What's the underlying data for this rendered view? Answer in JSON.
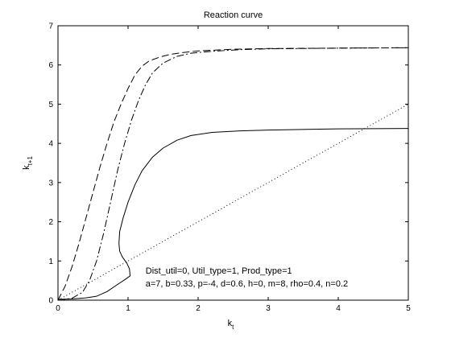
{
  "chart_data": {
    "type": "line",
    "title": "Reaction curve",
    "xlabel": {
      "base": "k",
      "sub": "t"
    },
    "ylabel": {
      "base": "k",
      "sub": "t+1"
    },
    "xlim": [
      0,
      5
    ],
    "ylim": [
      0,
      7
    ],
    "xticks": [
      0,
      1,
      2,
      3,
      4,
      5
    ],
    "yticks": [
      0,
      1,
      2,
      3,
      4,
      5,
      6,
      7
    ],
    "grid": false,
    "annotations": [
      {
        "text": "Dist_util=0, Util_type=1, Prod_type=1",
        "x": 1.25,
        "y": 0.68
      },
      {
        "text": "a=7, b=0.33, p=-4, d=0.6, h=0, m=8, rho=0.4, n=0.2",
        "x": 1.25,
        "y": 0.35
      }
    ],
    "series": [
      {
        "style": "dashed",
        "points": [
          [
            0,
            0
          ],
          [
            0.1,
            0.35
          ],
          [
            0.2,
            0.85
          ],
          [
            0.3,
            1.45
          ],
          [
            0.4,
            2.1
          ],
          [
            0.5,
            2.75
          ],
          [
            0.6,
            3.4
          ],
          [
            0.7,
            4.0
          ],
          [
            0.8,
            4.55
          ],
          [
            0.9,
            5.0
          ],
          [
            1.0,
            5.4
          ],
          [
            1.1,
            5.75
          ],
          [
            1.2,
            5.97
          ],
          [
            1.3,
            6.1
          ],
          [
            1.45,
            6.2
          ],
          [
            1.6,
            6.27
          ],
          [
            1.8,
            6.32
          ],
          [
            2.0,
            6.36
          ],
          [
            2.5,
            6.4
          ],
          [
            3.0,
            6.42
          ],
          [
            4.0,
            6.43
          ],
          [
            5.0,
            6.44
          ]
        ]
      },
      {
        "style": "dashdot",
        "points": [
          [
            0,
            0
          ],
          [
            0.2,
            0.05
          ],
          [
            0.35,
            0.2
          ],
          [
            0.45,
            0.5
          ],
          [
            0.55,
            1.0
          ],
          [
            0.65,
            1.7
          ],
          [
            0.75,
            2.5
          ],
          [
            0.85,
            3.3
          ],
          [
            0.95,
            4.0
          ],
          [
            1.05,
            4.6
          ],
          [
            1.15,
            5.1
          ],
          [
            1.25,
            5.5
          ],
          [
            1.35,
            5.8
          ],
          [
            1.5,
            6.05
          ],
          [
            1.7,
            6.22
          ],
          [
            1.9,
            6.3
          ],
          [
            2.2,
            6.35
          ],
          [
            2.6,
            6.39
          ],
          [
            3.0,
            6.41
          ],
          [
            4.0,
            6.43
          ],
          [
            5.0,
            6.44
          ]
        ]
      },
      {
        "style": "solid",
        "points": [
          [
            0,
            0.02
          ],
          [
            0.2,
            0.03
          ],
          [
            0.4,
            0.06
          ],
          [
            0.55,
            0.1
          ],
          [
            0.7,
            0.22
          ],
          [
            0.85,
            0.4
          ],
          [
            0.95,
            0.52
          ],
          [
            1.03,
            0.62
          ],
          [
            1.02,
            0.8
          ],
          [
            0.98,
            0.95
          ],
          [
            0.92,
            1.1
          ],
          [
            0.88,
            1.25
          ],
          [
            0.87,
            1.45
          ],
          [
            0.88,
            1.75
          ],
          [
            0.93,
            2.1
          ],
          [
            1.0,
            2.5
          ],
          [
            1.1,
            2.95
          ],
          [
            1.2,
            3.3
          ],
          [
            1.35,
            3.65
          ],
          [
            1.5,
            3.88
          ],
          [
            1.7,
            4.08
          ],
          [
            1.9,
            4.2
          ],
          [
            2.2,
            4.28
          ],
          [
            2.6,
            4.32
          ],
          [
            3.0,
            4.34
          ],
          [
            4.0,
            4.37
          ],
          [
            5.0,
            4.38
          ]
        ]
      },
      {
        "style": "dotted",
        "points": [
          [
            0,
            0
          ],
          [
            5,
            5
          ]
        ]
      }
    ]
  }
}
